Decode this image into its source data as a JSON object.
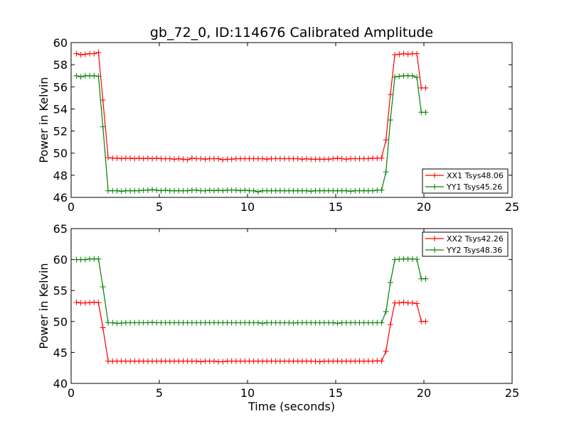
{
  "figure": {
    "title": "gb_72_0, ID:114676 Calibrated Amplitude"
  },
  "chart_data": [
    {
      "type": "line",
      "xlabel": "",
      "ylabel": "Power in Kelvin",
      "xlim": [
        0,
        25
      ],
      "ylim": [
        46,
        60
      ],
      "xticks": [
        0,
        5,
        10,
        15,
        20,
        25
      ],
      "yticks": [
        46,
        48,
        50,
        52,
        54,
        56,
        58,
        60
      ],
      "legend_position": "lower-right",
      "x": [
        0.3,
        0.55,
        0.8,
        1.05,
        1.3,
        1.55,
        1.8,
        2.1,
        2.35,
        2.6,
        2.85,
        3.1,
        3.35,
        3.6,
        3.85,
        4.1,
        4.35,
        4.6,
        4.85,
        5.1,
        5.35,
        5.6,
        5.85,
        6.1,
        6.35,
        6.6,
        6.85,
        7.1,
        7.35,
        7.6,
        7.85,
        8.1,
        8.35,
        8.6,
        8.85,
        9.1,
        9.35,
        9.6,
        9.85,
        10.1,
        10.35,
        10.6,
        10.85,
        11.1,
        11.35,
        11.6,
        11.85,
        12.1,
        12.35,
        12.6,
        12.85,
        13.1,
        13.35,
        13.6,
        13.85,
        14.1,
        14.35,
        14.6,
        14.85,
        15.1,
        15.35,
        15.6,
        15.85,
        16.1,
        16.35,
        16.6,
        16.85,
        17.1,
        17.35,
        17.6,
        17.85,
        18.1,
        18.35,
        18.6,
        18.85,
        19.1,
        19.35,
        19.6,
        19.85,
        20.1
      ],
      "series": [
        {
          "name": "XX1 Tsys48.06",
          "color": "#ff0000",
          "values": [
            59.0,
            58.9,
            58.95,
            59.0,
            59.0,
            59.1,
            54.8,
            49.6,
            49.55,
            49.55,
            49.5,
            49.55,
            49.55,
            49.5,
            49.55,
            49.5,
            49.55,
            49.5,
            49.55,
            49.5,
            49.5,
            49.5,
            49.45,
            49.5,
            49.45,
            49.4,
            49.55,
            49.5,
            49.5,
            49.45,
            49.5,
            49.5,
            49.5,
            49.4,
            49.45,
            49.45,
            49.5,
            49.5,
            49.5,
            49.5,
            49.5,
            49.5,
            49.5,
            49.45,
            49.5,
            49.5,
            49.5,
            49.5,
            49.5,
            49.5,
            49.5,
            49.45,
            49.5,
            49.45,
            49.45,
            49.45,
            49.45,
            49.45,
            49.5,
            49.55,
            49.5,
            49.45,
            49.5,
            49.5,
            49.5,
            49.5,
            49.5,
            49.55,
            49.55,
            49.55,
            51.2,
            55.3,
            58.9,
            58.95,
            59.0,
            58.95,
            59.0,
            59.0,
            55.9,
            55.9
          ]
        },
        {
          "name": "YY1 Tsys45.26",
          "color": "#008000",
          "values": [
            57.0,
            56.9,
            57.0,
            57.0,
            57.0,
            56.95,
            52.4,
            46.6,
            46.6,
            46.6,
            46.55,
            46.6,
            46.6,
            46.6,
            46.6,
            46.65,
            46.65,
            46.7,
            46.65,
            46.6,
            46.65,
            46.6,
            46.6,
            46.6,
            46.6,
            46.6,
            46.65,
            46.65,
            46.6,
            46.6,
            46.65,
            46.6,
            46.65,
            46.6,
            46.65,
            46.65,
            46.65,
            46.6,
            46.65,
            46.6,
            46.6,
            46.5,
            46.6,
            46.6,
            46.6,
            46.6,
            46.6,
            46.6,
            46.6,
            46.6,
            46.6,
            46.6,
            46.6,
            46.55,
            46.6,
            46.6,
            46.6,
            46.6,
            46.6,
            46.6,
            46.6,
            46.6,
            46.55,
            46.6,
            46.6,
            46.6,
            46.6,
            46.6,
            46.65,
            46.65,
            48.3,
            53.0,
            56.9,
            56.95,
            57.0,
            57.0,
            57.0,
            56.85,
            53.7,
            53.7
          ]
        }
      ]
    },
    {
      "type": "line",
      "xlabel": "Time (seconds)",
      "ylabel": "Power in Kelvin",
      "xlim": [
        0,
        25
      ],
      "ylim": [
        40,
        65
      ],
      "xticks": [
        0,
        5,
        10,
        15,
        20,
        25
      ],
      "yticks": [
        40,
        45,
        50,
        55,
        60,
        65
      ],
      "legend_position": "upper-right",
      "x": [
        0.3,
        0.55,
        0.8,
        1.05,
        1.3,
        1.55,
        1.8,
        2.1,
        2.35,
        2.6,
        2.85,
        3.1,
        3.35,
        3.6,
        3.85,
        4.1,
        4.35,
        4.6,
        4.85,
        5.1,
        5.35,
        5.6,
        5.85,
        6.1,
        6.35,
        6.6,
        6.85,
        7.1,
        7.35,
        7.6,
        7.85,
        8.1,
        8.35,
        8.6,
        8.85,
        9.1,
        9.35,
        9.6,
        9.85,
        10.1,
        10.35,
        10.6,
        10.85,
        11.1,
        11.35,
        11.6,
        11.85,
        12.1,
        12.35,
        12.6,
        12.85,
        13.1,
        13.35,
        13.6,
        13.85,
        14.1,
        14.35,
        14.6,
        14.85,
        15.1,
        15.35,
        15.6,
        15.85,
        16.1,
        16.35,
        16.6,
        16.85,
        17.1,
        17.35,
        17.6,
        17.85,
        18.1,
        18.35,
        18.6,
        18.85,
        19.1,
        19.35,
        19.6,
        19.85,
        20.1
      ],
      "series": [
        {
          "name": "XX2 Tsys42.26",
          "color": "#ff0000",
          "values": [
            53.1,
            53.0,
            53.0,
            53.05,
            53.1,
            53.05,
            49.0,
            43.6,
            43.6,
            43.6,
            43.6,
            43.6,
            43.6,
            43.6,
            43.6,
            43.6,
            43.6,
            43.6,
            43.6,
            43.6,
            43.6,
            43.6,
            43.6,
            43.6,
            43.6,
            43.6,
            43.6,
            43.6,
            43.5,
            43.6,
            43.6,
            43.6,
            43.5,
            43.5,
            43.6,
            43.6,
            43.6,
            43.6,
            43.6,
            43.6,
            43.6,
            43.6,
            43.6,
            43.6,
            43.6,
            43.6,
            43.6,
            43.6,
            43.6,
            43.6,
            43.6,
            43.6,
            43.6,
            43.6,
            43.55,
            43.5,
            43.6,
            43.6,
            43.6,
            43.6,
            43.6,
            43.6,
            43.6,
            43.6,
            43.6,
            43.6,
            43.6,
            43.6,
            43.65,
            43.6,
            45.2,
            49.5,
            53.0,
            53.0,
            53.1,
            53.0,
            53.0,
            52.9,
            50.0,
            50.0
          ]
        },
        {
          "name": "YY2 Tsys48.36",
          "color": "#008000",
          "values": [
            60.0,
            60.0,
            60.0,
            60.1,
            60.1,
            60.1,
            55.6,
            49.8,
            49.8,
            49.7,
            49.75,
            49.8,
            49.8,
            49.8,
            49.8,
            49.8,
            49.8,
            49.85,
            49.8,
            49.8,
            49.8,
            49.8,
            49.8,
            49.8,
            49.8,
            49.8,
            49.8,
            49.8,
            49.8,
            49.8,
            49.8,
            49.8,
            49.8,
            49.8,
            49.8,
            49.8,
            49.8,
            49.8,
            49.8,
            49.8,
            49.8,
            49.8,
            49.7,
            49.8,
            49.8,
            49.8,
            49.8,
            49.8,
            49.8,
            49.75,
            49.8,
            49.8,
            49.8,
            49.8,
            49.8,
            49.8,
            49.8,
            49.8,
            49.8,
            49.7,
            49.8,
            49.8,
            49.8,
            49.8,
            49.8,
            49.8,
            49.8,
            49.8,
            49.8,
            49.8,
            51.6,
            56.3,
            60.0,
            60.05,
            60.1,
            60.1,
            60.1,
            60.05,
            56.9,
            56.9
          ]
        }
      ]
    }
  ]
}
